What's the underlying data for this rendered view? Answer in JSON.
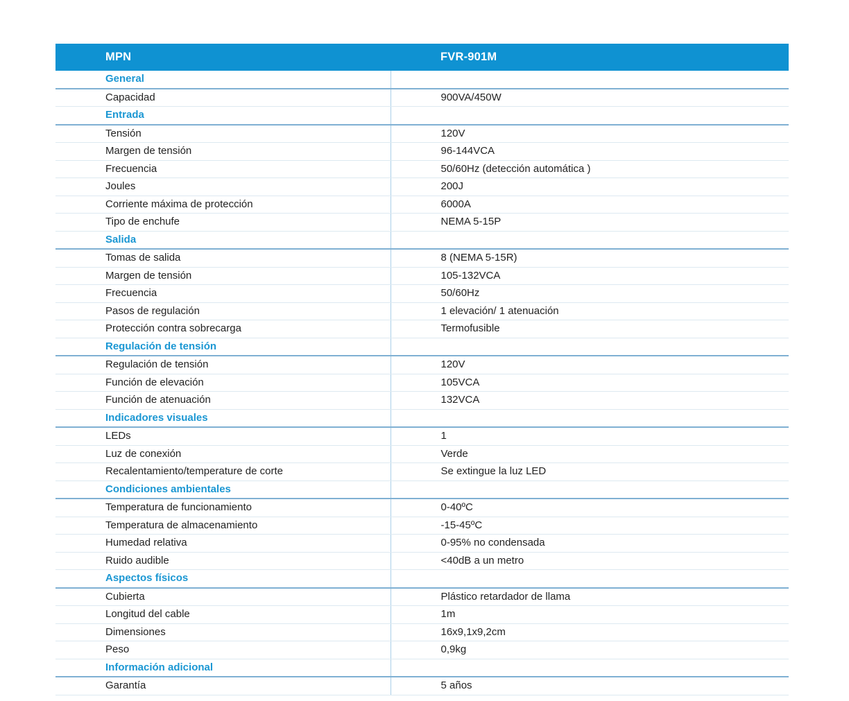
{
  "colors": {
    "header_band": "#0f92d2",
    "header_text": "#ffffff",
    "section_text": "#1b97d3",
    "section_rule": "#7fb0d3",
    "row_rule": "#dde9f1",
    "column_divider": "#aacfe8",
    "body_text": "#232323"
  },
  "table": {
    "columns": [
      "MPN",
      "FVR-901M"
    ],
    "rows": [
      {
        "type": "section",
        "label": "General",
        "value": ""
      },
      {
        "type": "row",
        "label": "Capacidad",
        "value": "900VA/450W"
      },
      {
        "type": "section",
        "label": "Entrada",
        "value": ""
      },
      {
        "type": "row",
        "label": "Tensión",
        "value": "120V"
      },
      {
        "type": "row",
        "label": "Margen de tensión",
        "value": "96-144VCA"
      },
      {
        "type": "row",
        "label": "Frecuencia",
        "value": "50/60Hz (detección automática )"
      },
      {
        "type": "row",
        "label": "Joules",
        "value": "200J"
      },
      {
        "type": "row",
        "label": "Corriente máxima de protección",
        "value": "6000A"
      },
      {
        "type": "row",
        "label": "Tipo de enchufe",
        "value": "NEMA 5-15P"
      },
      {
        "type": "section",
        "label": "Salida",
        "value": ""
      },
      {
        "type": "row",
        "label": "Tomas de salida",
        "value": "8 (NEMA 5-15R)"
      },
      {
        "type": "row",
        "label": "Margen de tensión",
        "value": "105-132VCA"
      },
      {
        "type": "row",
        "label": "Frecuencia",
        "value": "50/60Hz"
      },
      {
        "type": "row",
        "label": "Pasos de regulación",
        "value": "1 elevación/ 1 atenuación"
      },
      {
        "type": "row",
        "label": "Protección contra sobrecarga",
        "value": "Termofusible"
      },
      {
        "type": "section",
        "label": "Regulación de tensión",
        "value": ""
      },
      {
        "type": "row",
        "label": "Regulación de tensión",
        "value": "120V"
      },
      {
        "type": "row",
        "label": "Función de elevación",
        "value": "105VCA"
      },
      {
        "type": "row",
        "label": "Función de atenuación",
        "value": "132VCA"
      },
      {
        "type": "section",
        "label": "Indicadores visuales",
        "value": ""
      },
      {
        "type": "row",
        "label": "LEDs",
        "value": "1"
      },
      {
        "type": "row",
        "label": "Luz de conexión",
        "value": "Verde"
      },
      {
        "type": "row",
        "label": "Recalentamiento/temperature de corte",
        "value": "Se extingue la luz LED"
      },
      {
        "type": "section",
        "label": "Condiciones ambientales",
        "value": ""
      },
      {
        "type": "row",
        "label": "Temperatura de funcionamiento",
        "value": "0-40ºC"
      },
      {
        "type": "row",
        "label": "Temperatura de almacenamiento",
        "value": "-15-45ºC"
      },
      {
        "type": "row",
        "label": "Humedad relativa",
        "value": "0-95% no condensada"
      },
      {
        "type": "row",
        "label": "Ruido audible",
        "value": "<40dB a un metro"
      },
      {
        "type": "section",
        "label": "Aspectos físicos",
        "value": ""
      },
      {
        "type": "row",
        "label": "Cubierta",
        "value": "Plástico retardador de llama"
      },
      {
        "type": "row",
        "label": "Longitud del cable",
        "value": "1m"
      },
      {
        "type": "row",
        "label": "Dimensiones",
        "value": "16x9,1x9,2cm"
      },
      {
        "type": "row",
        "label": "Peso",
        "value": "0,9kg"
      },
      {
        "type": "section",
        "label": "Información adicional",
        "value": ""
      },
      {
        "type": "row",
        "label": "Garantía",
        "value": "5 años"
      }
    ]
  }
}
